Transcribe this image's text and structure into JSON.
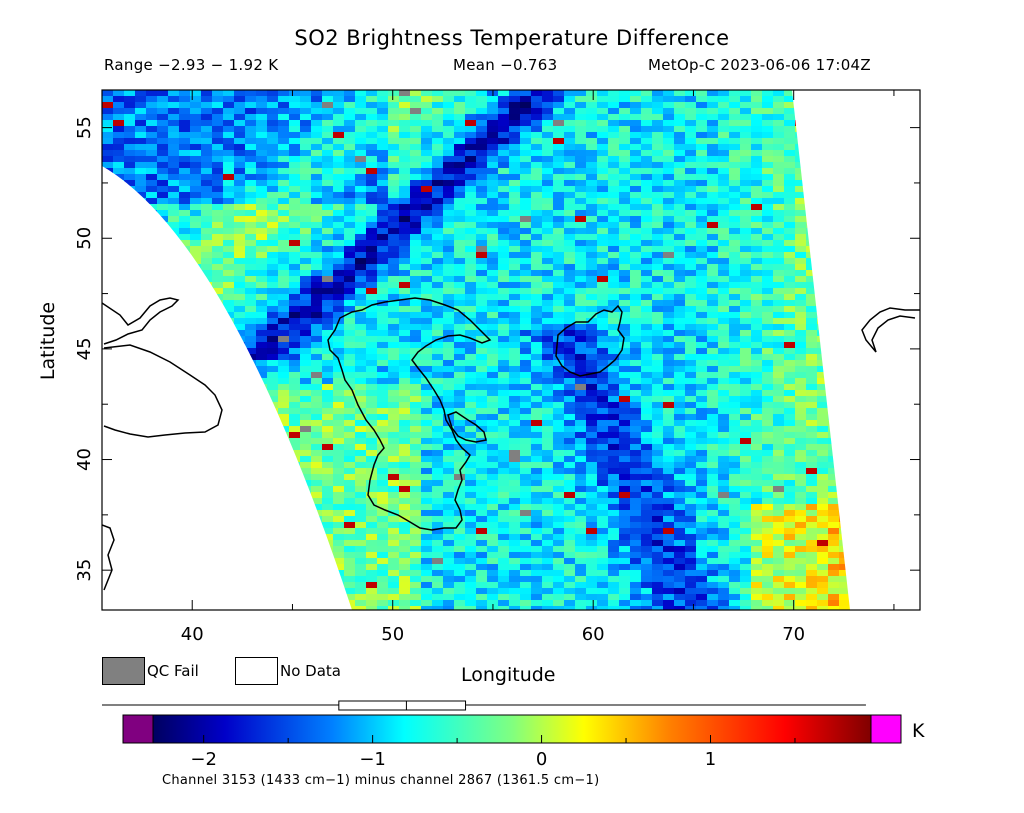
{
  "header": {
    "title": "SO2 Brightness Temperature Difference",
    "range": "Range −2.93 − 1.92 K",
    "mean": "Mean −0.763",
    "satellite": "MetOp-C 2023-06-06 17:04Z"
  },
  "axes": {
    "xlabel": "Longitude",
    "ylabel": "Latitude",
    "lon_range": [
      35.5,
      76.3
    ],
    "lat_range": [
      33.2,
      56.7
    ],
    "x_ticks": [
      "40",
      "50",
      "60",
      "70"
    ],
    "y_ticks": [
      "35",
      "40",
      "45",
      "50",
      "55"
    ]
  },
  "legend": {
    "qc_fail": "QC Fail",
    "no_data": "No Data",
    "qc_fail_color": "#808080",
    "no_data_color": "#ffffff"
  },
  "colorbar": {
    "unit": "K",
    "ticks": [
      "−2",
      "−1",
      "0",
      "1"
    ],
    "tick_values": [
      -2,
      -1,
      0,
      1
    ],
    "vmin": -2.3,
    "vmax": 1.95,
    "under_color": "#800080",
    "over_color": "#ff00ff",
    "boxplot": {
      "min": -2.93,
      "q1": -1.2,
      "median": -0.8,
      "q3": -0.45,
      "max": 1.92
    }
  },
  "caption": "Channel 3153 (1433 cm−1) minus channel 2867 (1361.5 cm−1)"
}
